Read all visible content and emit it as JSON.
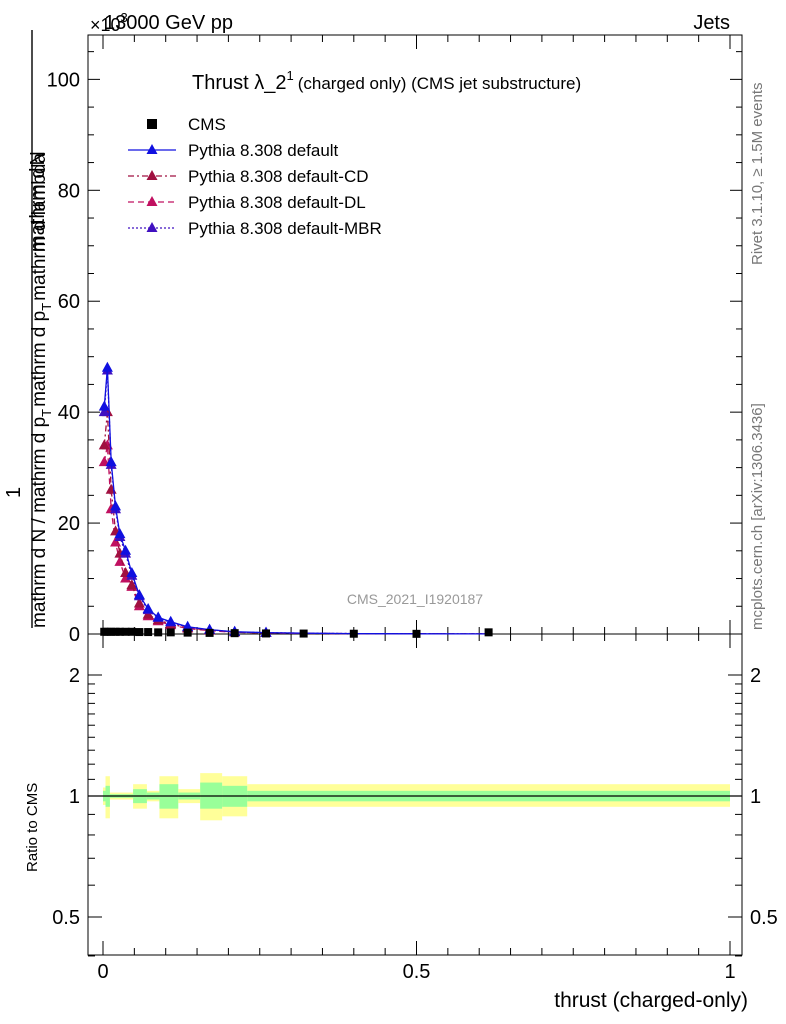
{
  "header": {
    "left": "13000 GeV pp",
    "right": "Jets",
    "exponent_base": "×10",
    "exponent_power": "3"
  },
  "title": {
    "main": "Thrust λ_2",
    "superscript": "1",
    "suffix": "(charged only) (CMS jet substructure)"
  },
  "side_labels": {
    "rivet": "Rivet 3.1.10, ≥ 1.5M events",
    "mcplots": "mcplots.cern.ch [arXiv:1306.3436]"
  },
  "watermark": "CMS_2021_I1920187",
  "y_axis_label": {
    "numerator_1": "1",
    "numerator_2": "mathrm d",
    "numerator_3": "N",
    "denominator_1": "mathrm d N / mathrm d p",
    "denominator_sub_1": "T",
    "denominator_2": "mathrm d p",
    "denominator_sub_2": "T",
    "denominator_3": "mathrm d lambda"
  },
  "ratio_axis_label": "Ratio to CMS",
  "x_axis_label": "thrust (charged-only)",
  "legend": [
    {
      "label": "CMS",
      "color": "#000000",
      "style": "square"
    },
    {
      "label": "Pythia 8.308 default",
      "color": "#1010e0",
      "style": "solid"
    },
    {
      "label": "Pythia 8.308 default-CD",
      "color": "#a01040",
      "style": "dashdot"
    },
    {
      "label": "Pythia 8.308 default-DL",
      "color": "#c01060",
      "style": "dashed"
    },
    {
      "label": "Pythia 8.308 default-MBR",
      "color": "#4010c0",
      "style": "dotted"
    }
  ],
  "chart_data": {
    "type": "line",
    "xlim": [
      0,
      1
    ],
    "ylim": [
      0,
      108
    ],
    "ratio_ylim": [
      0.36,
      2.28
    ],
    "x_ticks": [
      "0",
      "0.5",
      "1"
    ],
    "y_ticks": [
      "0",
      "20",
      "40",
      "60",
      "80",
      "100"
    ],
    "ratio_ticks": [
      "0.5",
      "1",
      "2"
    ],
    "x": [
      0.002,
      0.007,
      0.013,
      0.02,
      0.027,
      0.036,
      0.046,
      0.058,
      0.072,
      0.088,
      0.108,
      0.135,
      0.17,
      0.21,
      0.26,
      0.32,
      0.4,
      0.5,
      0.615
    ],
    "series": [
      {
        "name": "CMS",
        "values": [
          0.4,
          0.4,
          0.4,
          0.4,
          0.4,
          0.4,
          0.4,
          0.35,
          0.35,
          0.3,
          0.3,
          0.25,
          0.2,
          0.15,
          0.1,
          0.08,
          0.05,
          0.03,
          0.3
        ]
      },
      {
        "name": "Pythia 8.308 default",
        "values": [
          41,
          48,
          31,
          23,
          18,
          15,
          11,
          7,
          4.5,
          3,
          2.2,
          1.3,
          0.8,
          0.4,
          0.25,
          0.15,
          0.08,
          0.04,
          0.02
        ]
      },
      {
        "name": "Pythia 8.308 default-CD",
        "values": [
          34,
          40,
          26,
          18.5,
          14.5,
          11,
          8.8,
          5.5,
          3.5,
          2.5,
          1.8,
          1.1,
          0.7,
          0.35,
          0.2,
          0.12,
          0.07,
          0.03,
          0.02
        ]
      },
      {
        "name": "Pythia 8.308 default-DL",
        "values": [
          31,
          34,
          22.5,
          16.5,
          13,
          10,
          8.5,
          5,
          3.2,
          2.3,
          1.6,
          1,
          0.6,
          0.3,
          0.18,
          0.1,
          0.06,
          0.03,
          0.02
        ]
      },
      {
        "name": "Pythia 8.308 default-MBR",
        "values": [
          40,
          47.5,
          30.5,
          22.5,
          17.5,
          14.5,
          10.5,
          6.8,
          4.3,
          2.9,
          2.1,
          1.25,
          0.75,
          0.38,
          0.23,
          0.14,
          0.08,
          0.04,
          0.02
        ]
      }
    ],
    "ratio_bands": [
      {
        "x1": 0.0,
        "x2": 0.004,
        "green": [
          0.97,
          1.03
        ],
        "yellow": [
          0.95,
          1.05
        ]
      },
      {
        "x1": 0.004,
        "x2": 0.011,
        "green": [
          0.94,
          1.06
        ],
        "yellow": [
          0.88,
          1.12
        ]
      },
      {
        "x1": 0.011,
        "x2": 0.048,
        "green": [
          0.99,
          1.01
        ],
        "yellow": [
          0.98,
          1.02
        ]
      },
      {
        "x1": 0.048,
        "x2": 0.07,
        "green": [
          0.96,
          1.04
        ],
        "yellow": [
          0.93,
          1.07
        ]
      },
      {
        "x1": 0.07,
        "x2": 0.09,
        "green": [
          0.98,
          1.02
        ],
        "yellow": [
          0.97,
          1.03
        ]
      },
      {
        "x1": 0.09,
        "x2": 0.12,
        "green": [
          0.93,
          1.07
        ],
        "yellow": [
          0.88,
          1.12
        ]
      },
      {
        "x1": 0.12,
        "x2": 0.155,
        "green": [
          0.98,
          1.02
        ],
        "yellow": [
          0.96,
          1.04
        ]
      },
      {
        "x1": 0.155,
        "x2": 0.19,
        "green": [
          0.93,
          1.08
        ],
        "yellow": [
          0.87,
          1.14
        ]
      },
      {
        "x1": 0.19,
        "x2": 0.23,
        "green": [
          0.94,
          1.06
        ],
        "yellow": [
          0.89,
          1.12
        ]
      },
      {
        "x1": 0.23,
        "x2": 1.0,
        "green": [
          0.97,
          1.03
        ],
        "yellow": [
          0.94,
          1.07
        ]
      }
    ]
  }
}
